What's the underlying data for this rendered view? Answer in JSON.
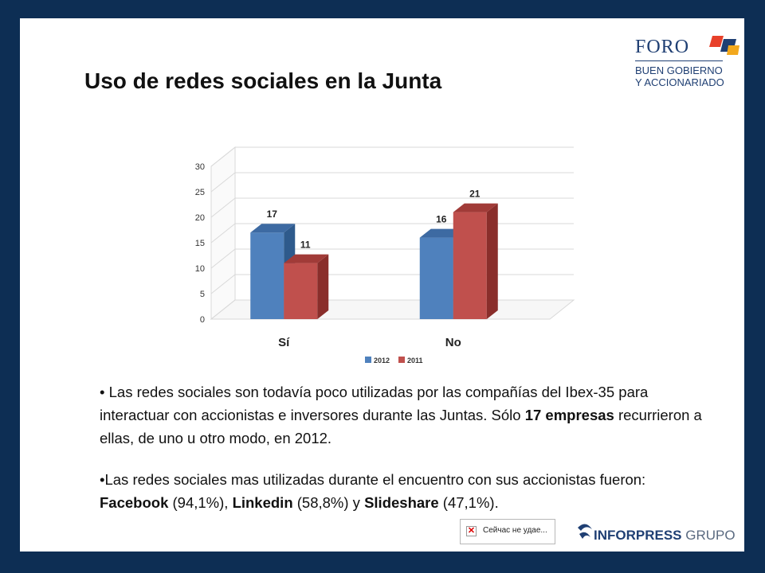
{
  "slide": {
    "title": "Uso de redes sociales en la Junta"
  },
  "logos": {
    "foro_word": "FORO",
    "foro_line1": "BUEN GOBIERNO",
    "foro_line2": "Y ACCIONARIADO",
    "inforpress_main": "INFORPRESS",
    "inforpress_sub": "GRUPO"
  },
  "broken_image": {
    "alt_text": "Сейчас не удае..."
  },
  "bullets": {
    "b1_part1": "Las redes sociales son todavía poco utilizadas por las compañías del Ibex-35 para interactuar con accionistas e inversores durante las Juntas. Sólo ",
    "b1_bold": "17 empresas",
    "b1_part2": " recurrieron a ellas, de uno u otro modo, en 2012.",
    "b2_part1": "Las redes sociales mas utilizadas durante el encuentro con sus accionistas fueron: ",
    "b2_fb": "Facebook",
    "b2_fb_pct": " (94,1%), ",
    "b2_li": "Linkedin",
    "b2_li_pct": " (58,8%) y ",
    "b2_ss": "Slideshare",
    "b2_ss_pct": " (47,1%)."
  },
  "colors": {
    "background": "#0d2e54",
    "series_2012": "#4f81bd",
    "series_2011": "#c0504d"
  },
  "chart_data": {
    "type": "bar",
    "categories": [
      "Sí",
      "No"
    ],
    "series": [
      {
        "name": "2012",
        "values": [
          17,
          16
        ]
      },
      {
        "name": "2011",
        "values": [
          11,
          21
        ]
      }
    ],
    "ylim": [
      0,
      30
    ],
    "yticks": [
      "0",
      "5",
      "10",
      "15",
      "20",
      "25",
      "30"
    ],
    "grid": true,
    "legend": "bottom"
  }
}
